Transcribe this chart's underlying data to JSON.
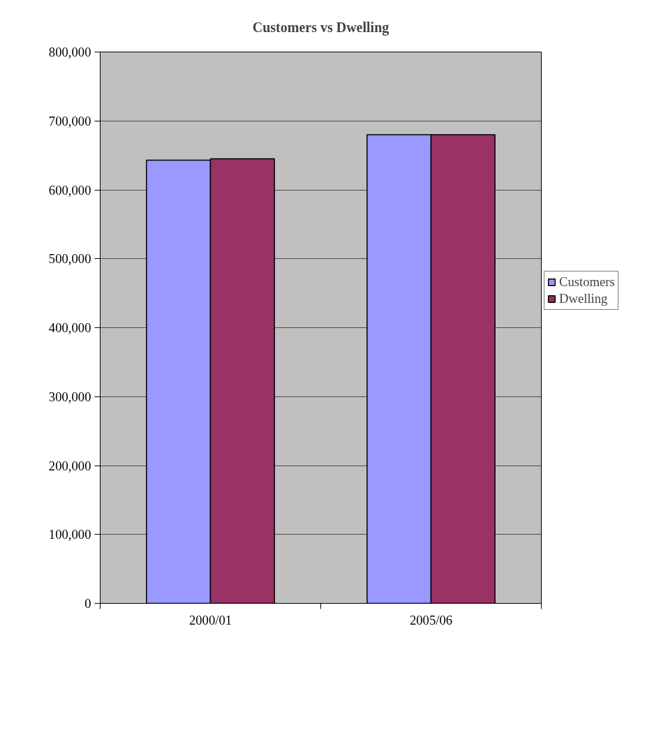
{
  "chart_data": {
    "type": "bar",
    "title": "Customers vs Dwelling",
    "categories": [
      "2000/01",
      "2005/06"
    ],
    "series": [
      {
        "name": "Customers",
        "color": "#9999ff",
        "values": [
          643000,
          680000
        ]
      },
      {
        "name": "Dwelling",
        "color": "#993366",
        "values": [
          645000,
          680000
        ]
      }
    ],
    "ylim": [
      0,
      800000
    ],
    "yticks": [
      {
        "value": 0,
        "label": "0"
      },
      {
        "value": 100000,
        "label": "100,000"
      },
      {
        "value": 200000,
        "label": "200,000"
      },
      {
        "value": 300000,
        "label": "300,000"
      },
      {
        "value": 400000,
        "label": "400,000"
      },
      {
        "value": 500000,
        "label": "500,000"
      },
      {
        "value": 600000,
        "label": "600,000"
      },
      {
        "value": 700000,
        "label": "700,000"
      },
      {
        "value": 800000,
        "label": "800,000"
      }
    ],
    "grid": "y",
    "legend": "right"
  }
}
